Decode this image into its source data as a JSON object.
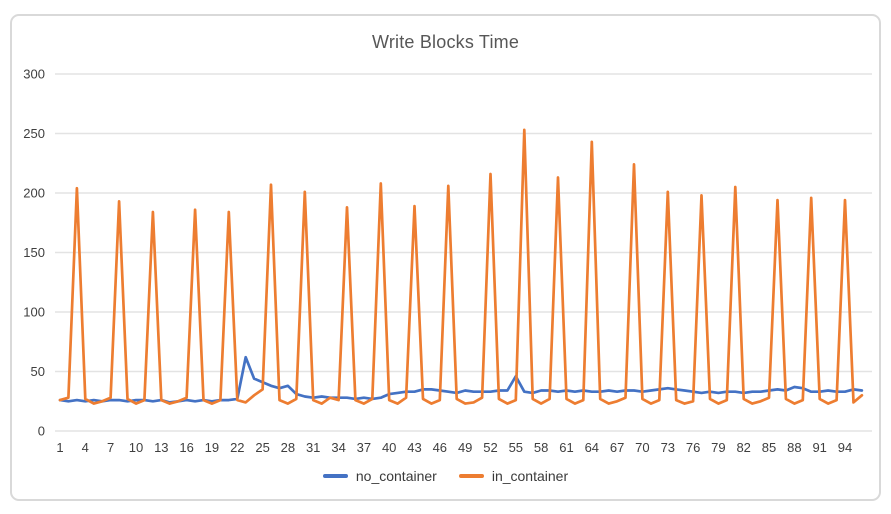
{
  "chart_data": {
    "type": "line",
    "title": "Write Blocks Time",
    "grid": "horizontal",
    "legend_position": "bottom",
    "ylim": [
      0,
      300
    ],
    "y_ticks": [
      0,
      50,
      100,
      150,
      200,
      250,
      300
    ],
    "x_tick_labels": [
      "1",
      "4",
      "7",
      "10",
      "13",
      "16",
      "19",
      "22",
      "25",
      "28",
      "31",
      "34",
      "37",
      "40",
      "43",
      "46",
      "49",
      "52",
      "55",
      "58",
      "61",
      "64",
      "67",
      "70",
      "73",
      "76",
      "79",
      "82",
      "85",
      "88",
      "91",
      "94"
    ],
    "x_tick_step": 3,
    "x": [
      1,
      2,
      3,
      4,
      5,
      6,
      7,
      8,
      9,
      10,
      11,
      12,
      13,
      14,
      15,
      16,
      17,
      18,
      19,
      20,
      21,
      22,
      23,
      24,
      25,
      26,
      27,
      28,
      29,
      30,
      31,
      32,
      33,
      34,
      35,
      36,
      37,
      38,
      39,
      40,
      41,
      42,
      43,
      44,
      45,
      46,
      47,
      48,
      49,
      50,
      51,
      52,
      53,
      54,
      55,
      56,
      57,
      58,
      59,
      60,
      61,
      62,
      63,
      64,
      65,
      66,
      67,
      68,
      69,
      70,
      71,
      72,
      73,
      74,
      75,
      76,
      77,
      78,
      79,
      80,
      81,
      82,
      83,
      84,
      85,
      86,
      87,
      88,
      89,
      90,
      91,
      92,
      93,
      94,
      95,
      96
    ],
    "series": [
      {
        "name": "no_container",
        "color": "#4472C4",
        "values": [
          26,
          25,
          26,
          25,
          26,
          25,
          26,
          26,
          25,
          26,
          26,
          25,
          26,
          24,
          25,
          26,
          25,
          26,
          25,
          26,
          26,
          27,
          62,
          44,
          41,
          38,
          36,
          38,
          31,
          29,
          28,
          29,
          28,
          28,
          28,
          27,
          28,
          27,
          28,
          31,
          32,
          33,
          33,
          35,
          35,
          34,
          33,
          32,
          34,
          33,
          33,
          33,
          34,
          34,
          46,
          33,
          32,
          34,
          34,
          33,
          34,
          33,
          34,
          33,
          33,
          34,
          33,
          34,
          34,
          33,
          34,
          35,
          36,
          35,
          34,
          33,
          32,
          33,
          32,
          33,
          33,
          32,
          33,
          33,
          34,
          35,
          34,
          37,
          36,
          33,
          33,
          34,
          33,
          33,
          35,
          34
        ]
      },
      {
        "name": "in_container",
        "color": "#ED7D31",
        "values": [
          26,
          28,
          204,
          27,
          23,
          25,
          28,
          193,
          27,
          23,
          26,
          184,
          26,
          23,
          25,
          28,
          186,
          26,
          23,
          26,
          184,
          26,
          24,
          30,
          35,
          207,
          26,
          23,
          27,
          201,
          26,
          23,
          28,
          26,
          188,
          26,
          23,
          27,
          208,
          26,
          23,
          28,
          189,
          27,
          23,
          26,
          206,
          27,
          23,
          24,
          28,
          216,
          27,
          23,
          26,
          253,
          27,
          23,
          27,
          213,
          27,
          23,
          26,
          243,
          27,
          23,
          25,
          28,
          224,
          27,
          23,
          26,
          201,
          26,
          23,
          25,
          198,
          27,
          23,
          26,
          205,
          27,
          23,
          25,
          28,
          194,
          27,
          23,
          26,
          196,
          27,
          23,
          26,
          194,
          24,
          30
        ]
      }
    ]
  }
}
